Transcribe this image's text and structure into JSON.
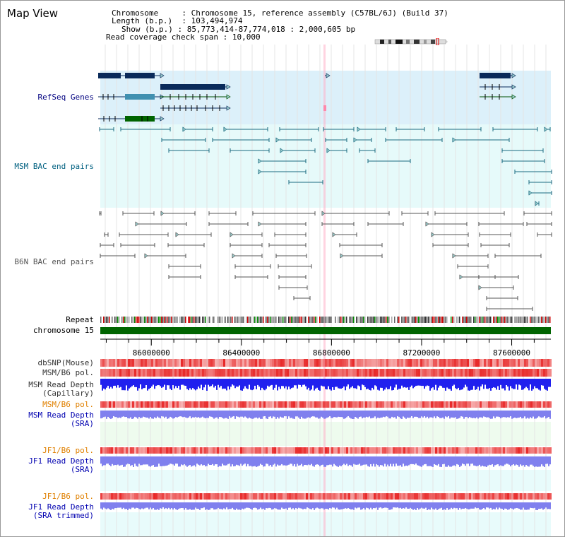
{
  "view_title": "Map View",
  "info": [
    {
      "label": "Chromosome",
      "value": "Chromosome 15, reference assembly (C57BL/6J) (Build 37)"
    },
    {
      "label": "Length (b.p.)",
      "value": "103,494,974"
    },
    {
      "label": "Show (b.p.)",
      "value": "85,773,414-87,774,018 : 2,000,605 bp"
    },
    {
      "label": "Read coverage check span",
      "value": "10,000"
    }
  ],
  "tracks": [
    {
      "id": "refseq",
      "label": "RefSeq Genes",
      "color": "#000080"
    },
    {
      "id": "msm-bac",
      "label": "MSM BAC end pairs",
      "color": "#006080"
    },
    {
      "id": "b6n-bac",
      "label": "B6N BAC end pairs",
      "color": "#555555"
    },
    {
      "id": "repeat",
      "label": "Repeat",
      "color": "#000000"
    },
    {
      "id": "chromosome",
      "label": "chromosome 15",
      "color": "#000000"
    },
    {
      "id": "dbsnp",
      "label": "dbSNP(Mouse)",
      "color": "#333333"
    },
    {
      "id": "msm-b6-pol-1",
      "label": "MSM/B6 pol.",
      "color": "#333333"
    },
    {
      "id": "msm-depth-cap",
      "label": "MSM Read Depth\n(Capillary)",
      "color": "#333333"
    },
    {
      "id": "msm-b6-pol-2",
      "label": "MSM/B6 pol.",
      "color": "#e08000"
    },
    {
      "id": "msm-depth-sra",
      "label": "MSM Read Depth\n(SRA)",
      "color": "#0000b0"
    },
    {
      "id": "jf1-b6-pol-1",
      "label": "JF1/B6 pol.",
      "color": "#e08000"
    },
    {
      "id": "jf1-depth-sra",
      "label": "JF1 Read Depth\n(SRA)",
      "color": "#0000b0"
    },
    {
      "id": "jf1-b6-pol-2",
      "label": "JF1/B6 pol.",
      "color": "#e08000"
    },
    {
      "id": "jf1-depth-trim",
      "label": "JF1 Read Depth\n(SRA trimmed)",
      "color": "#0000b0"
    }
  ],
  "axis": {
    "start_bp": 85773414,
    "end_bp": 87774018,
    "tick_labels": [
      "86000000",
      "86400000",
      "86800000",
      "87200000",
      "87600000"
    ]
  },
  "colors": {
    "refseq_bg": "#dcf0fa",
    "msm_bg": "#e6fafa",
    "refseq_dark": "#0a2a5a",
    "refseq_mid": "#4090b0",
    "refseq_green": "#006400",
    "msm_feature": "#1a6a80",
    "b6n_feature": "#555555",
    "chromosome_bar": "#006400",
    "snp_red": "#e83030",
    "depth_blue": "#2020ee",
    "depth_light": "#8080ee",
    "highlight": "#ffb0c8"
  }
}
